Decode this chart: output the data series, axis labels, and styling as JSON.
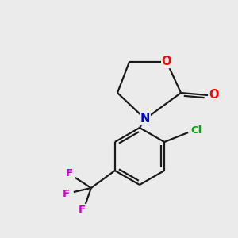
{
  "background_color": "#ebebeb",
  "bond_color": "#1a1a1a",
  "atom_colors": {
    "O": "#ff0000",
    "N": "#0000cc",
    "Cl": "#00aa00",
    "F": "#cc00cc"
  },
  "line_width": 1.6,
  "font_size": 9.5,
  "scale": 1.0
}
